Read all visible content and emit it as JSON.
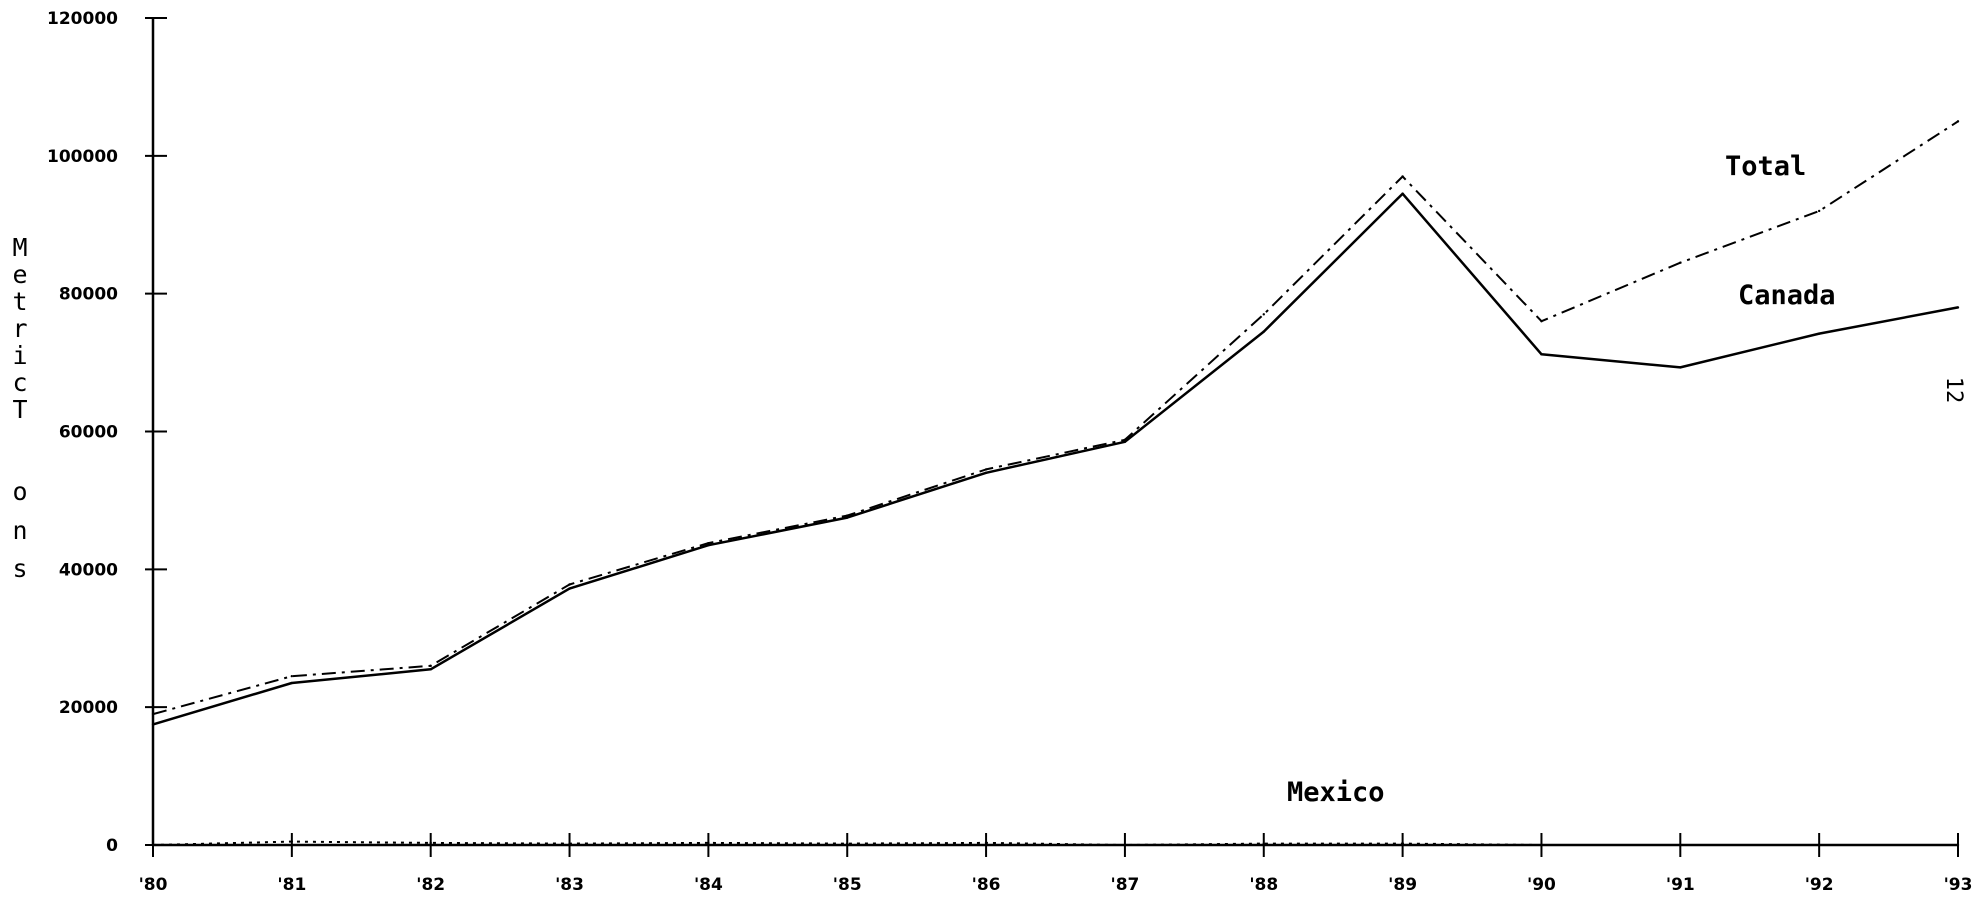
{
  "chart_data": {
    "type": "line",
    "categories": [
      "'80",
      "'81",
      "'82",
      "'83",
      "'84",
      "'85",
      "'86",
      "'87",
      "'88",
      "'89",
      "'90",
      "'91",
      "'92",
      "'93"
    ],
    "series": [
      {
        "name": "Total",
        "values": [
          19000,
          24500,
          26000,
          37800,
          43800,
          47800,
          54500,
          58800,
          77000,
          97000,
          76000,
          84500,
          92000,
          105000
        ],
        "style": "dash-dot"
      },
      {
        "name": "Canada",
        "values": [
          17500,
          23500,
          25500,
          37200,
          43500,
          47500,
          54000,
          58500,
          74500,
          94500,
          71200,
          69300,
          74200,
          78000
        ],
        "style": "solid"
      },
      {
        "name": "Mexico",
        "values": [
          0,
          500,
          300,
          200,
          300,
          200,
          300,
          0,
          200,
          200,
          0,
          0,
          0,
          0
        ],
        "style": "dotted"
      }
    ],
    "ylabel": "Metric Tons",
    "xlabel": "",
    "ylim": [
      0,
      120000
    ],
    "yticks": [
      0,
      20000,
      40000,
      60000,
      80000,
      100000,
      120000
    ],
    "grid": false,
    "legend": "inline labels near lines"
  },
  "page_number": "12",
  "colors": {
    "ink": "#000000",
    "background": "#ffffff"
  }
}
